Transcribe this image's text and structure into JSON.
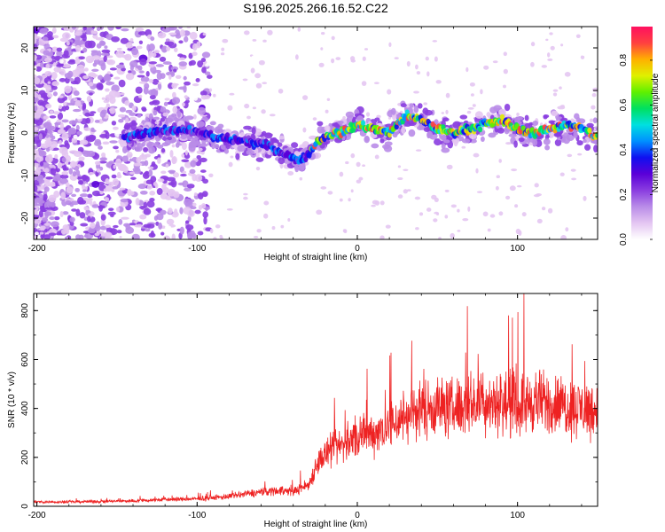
{
  "figure_title": "S196.2025.266.16.52.C22",
  "chart_data": [
    {
      "type": "heatmap",
      "title": "S196.2025.266.16.52.C22",
      "xlabel": "Height of straight line (km)",
      "ylabel": "Frequency (Hz)",
      "xlim": [
        -202,
        150
      ],
      "ylim": [
        -25,
        25
      ],
      "x_ticks": [
        -200,
        -100,
        0,
        100
      ],
      "y_ticks": [
        -20,
        -10,
        0,
        10,
        20
      ],
      "grid": false,
      "colorbar": {
        "label": "Normalized spectral amplitude",
        "range": [
          0.0,
          0.95
        ],
        "ticks": [
          0.0,
          0.2,
          0.4,
          0.6,
          0.8
        ],
        "colors": [
          "#ffffff",
          "#e4c6f2",
          "#b98ce8",
          "#8a3de0",
          "#5a00d8",
          "#1010f0",
          "#0090ff",
          "#00e0e0",
          "#00e060",
          "#60f000",
          "#e0f000",
          "#ffb000",
          "#ff4040",
          "#ff1060"
        ]
      },
      "trace": {
        "description": "dominant frequency ridge",
        "x": [
          -145,
          -130,
          -110,
          -90,
          -70,
          -55,
          -45,
          -40,
          -35,
          -30,
          -25,
          -20,
          -15,
          -10,
          0,
          10,
          20,
          30,
          40,
          50,
          60,
          70,
          80,
          90,
          100,
          110,
          120,
          130,
          140,
          150
        ],
        "y": [
          -1,
          0,
          1,
          -1,
          -2,
          -3,
          -5,
          -6,
          -6,
          -5,
          -2,
          -1,
          0,
          0,
          2,
          1,
          0,
          4,
          3,
          1,
          0,
          1,
          2,
          3,
          1,
          0,
          1,
          2,
          1,
          -1
        ]
      }
    },
    {
      "type": "line",
      "xlabel": "Height of straight line (km)",
      "ylabel": "SNR (10 * v/v)",
      "xlim": [
        -202,
        150
      ],
      "ylim": [
        0,
        870
      ],
      "x_ticks": [
        -200,
        -100,
        0,
        100
      ],
      "y_ticks": [
        0,
        200,
        400,
        600,
        800
      ],
      "grid": false,
      "series": [
        {
          "name": "SNR",
          "color": "#ee2222",
          "x": [
            -200,
            -180,
            -160,
            -140,
            -120,
            -100,
            -80,
            -70,
            -60,
            -50,
            -40,
            -30,
            -25,
            -20,
            -10,
            0,
            10,
            20,
            30,
            40,
            50,
            60,
            70,
            80,
            90,
            100,
            110,
            120,
            130,
            140,
            150
          ],
          "y": [
            18,
            18,
            20,
            22,
            28,
            30,
            40,
            50,
            58,
            65,
            60,
            90,
            180,
            210,
            250,
            280,
            300,
            330,
            370,
            400,
            410,
            400,
            420,
            430,
            420,
            410,
            430,
            420,
            410,
            400,
            390
          ]
        }
      ]
    }
  ]
}
